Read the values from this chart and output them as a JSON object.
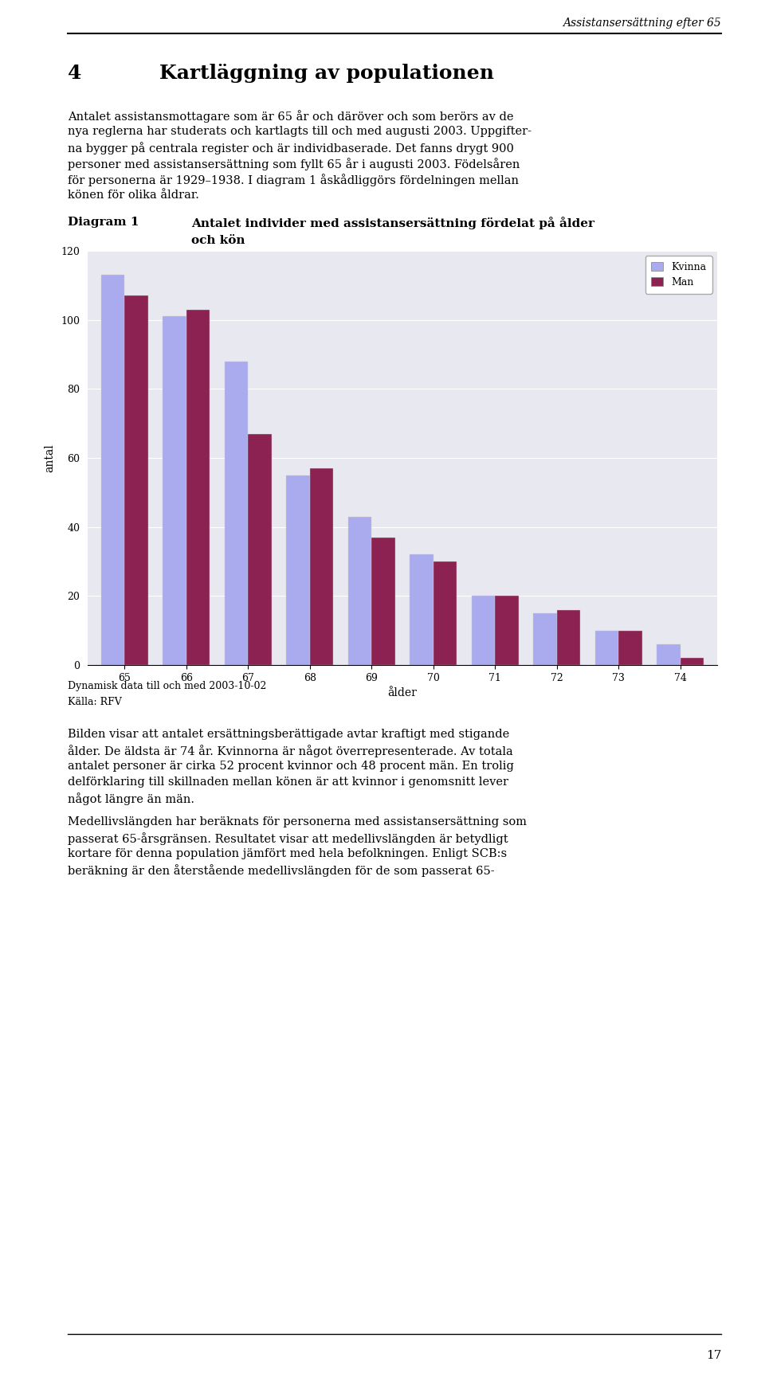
{
  "header_italic": "Assistansersättning efter 65",
  "chapter_num": "4",
  "chapter_title": "Kartläggning av populationen",
  "para1_lines": [
    "Antalet assistansmottagare som är 65 år och däröver och som berörs av de",
    "nya reglerna har studerats och kartlagts till och med augusti 2003. Uppgifter-",
    "na bygger på centrala register och är individbaserade. Det fanns drygt 900",
    "personer med assistansersättning som fyllt 65 år i augusti 2003. Födelsåren",
    "för personerna är 1929–1938. I diagram 1 åskådliggörs fördelningen mellan",
    "könen för olika åldrar."
  ],
  "diagram_label": "Diagram 1",
  "diagram_title_line1": "Antalet individer med assistansersättning fördelat på ålder",
  "diagram_title_line2": "och kön",
  "ages": [
    65,
    66,
    67,
    68,
    69,
    70,
    71,
    72,
    73,
    74
  ],
  "kvinna_values": [
    113,
    101,
    88,
    55,
    43,
    32,
    20,
    15,
    10,
    6
  ],
  "man_values": [
    107,
    103,
    67,
    57,
    37,
    30,
    20,
    16,
    10,
    2
  ],
  "kvinna_color": "#aaaaee",
  "man_color": "#8b2252",
  "ylabel": "antal",
  "xlabel": "ålder",
  "ylim": [
    0,
    120
  ],
  "yticks": [
    0,
    20,
    40,
    60,
    80,
    100,
    120
  ],
  "footer_line1": "Dynamisk data till och med 2003-10-02",
  "footer_line2": "Källa: RFV",
  "para2_lines": [
    "Bilden visar att antalet ersättningsberättigade avtar kraftigt med stigande",
    "ålder. De äldsta är 74 år. Kvinnorna är något överrepresenterade. Av totala",
    "antalet personer är cirka 52 procent kvinnor och 48 procent män. En trolig",
    "delförklaring till skillnaden mellan könen är att kvinnor i genomsnitt lever",
    "något längre än män."
  ],
  "para3_lines": [
    "Medellivslängden har beräknats för personerna med assistansersättning som",
    "passerat 65-årsgränsen. Resultatet visar att medellivslängden är betydligt",
    "kortare för denna population jämfört med hela befolkningen. Enligt SCB:s",
    "beräkning är den återstående medellivslängden för de som passerat 65-"
  ],
  "page_number": "17",
  "bg_color": "#ffffff",
  "chart_bg_color": "#e8e8f0"
}
